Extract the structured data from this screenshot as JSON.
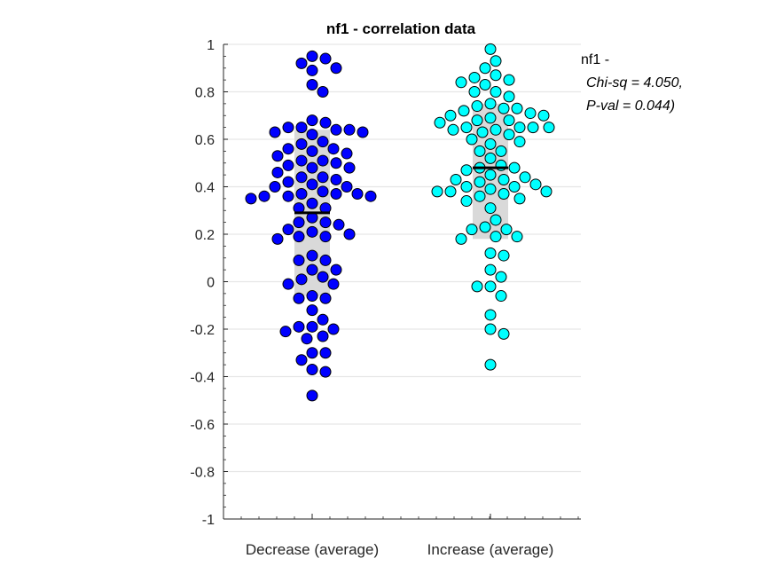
{
  "chart_data": {
    "type": "scatter",
    "subtype": "beeswarm",
    "title": "nf1 - correlation data",
    "xlabel": "",
    "ylabel": "",
    "categories": [
      "Decrease (average)",
      "Increase (average)"
    ],
    "ylim": [
      -1,
      1
    ],
    "yticks": [
      "-1",
      "-0.8",
      "-0.6",
      "-0.4",
      "-0.2",
      "0",
      "0.2",
      "0.4",
      "0.6",
      "0.8",
      "1"
    ],
    "grid": "horizontal",
    "annotation": [
      "nf1 -",
      "Chi-sq = 4.050,",
      "P-val = 0.044)"
    ],
    "series": [
      {
        "category": "Decrease (average)",
        "color": "#0000ff",
        "mean": 0.29,
        "box": [
          -0.06,
          0.64
        ],
        "values": [
          0.95,
          0.94,
          0.92,
          0.9,
          0.89,
          0.83,
          0.8,
          0.68,
          0.67,
          0.65,
          0.65,
          0.64,
          0.64,
          0.63,
          0.63,
          0.62,
          0.59,
          0.58,
          0.56,
          0.56,
          0.55,
          0.54,
          0.53,
          0.51,
          0.51,
          0.5,
          0.49,
          0.48,
          0.48,
          0.46,
          0.44,
          0.44,
          0.43,
          0.42,
          0.41,
          0.4,
          0.4,
          0.38,
          0.37,
          0.37,
          0.37,
          0.36,
          0.36,
          0.36,
          0.35,
          0.33,
          0.31,
          0.31,
          0.27,
          0.25,
          0.25,
          0.24,
          0.22,
          0.21,
          0.2,
          0.19,
          0.19,
          0.18,
          0.11,
          0.09,
          0.09,
          0.05,
          0.05,
          0.02,
          0.01,
          -0.01,
          -0.01,
          -0.06,
          -0.07,
          -0.07,
          -0.12,
          -0.16,
          -0.19,
          -0.19,
          -0.2,
          -0.21,
          -0.23,
          -0.24,
          -0.3,
          -0.3,
          -0.33,
          -0.37,
          -0.38,
          -0.48
        ]
      },
      {
        "category": "Increase (average)",
        "color": "#00ffff",
        "mean": 0.48,
        "box": [
          0.18,
          0.75
        ],
        "values": [
          0.98,
          0.93,
          0.9,
          0.87,
          0.86,
          0.85,
          0.84,
          0.83,
          0.8,
          0.8,
          0.78,
          0.75,
          0.74,
          0.73,
          0.73,
          0.72,
          0.71,
          0.7,
          0.7,
          0.69,
          0.68,
          0.68,
          0.67,
          0.65,
          0.65,
          0.65,
          0.65,
          0.64,
          0.64,
          0.63,
          0.62,
          0.6,
          0.59,
          0.58,
          0.55,
          0.55,
          0.52,
          0.49,
          0.48,
          0.48,
          0.47,
          0.45,
          0.44,
          0.43,
          0.43,
          0.42,
          0.41,
          0.4,
          0.4,
          0.39,
          0.38,
          0.38,
          0.38,
          0.37,
          0.36,
          0.35,
          0.34,
          0.31,
          0.26,
          0.23,
          0.22,
          0.22,
          0.19,
          0.19,
          0.18,
          0.12,
          0.11,
          0.05,
          0.02,
          -0.02,
          -0.02,
          -0.06,
          -0.14,
          -0.2,
          -0.22,
          -0.35
        ]
      }
    ]
  }
}
